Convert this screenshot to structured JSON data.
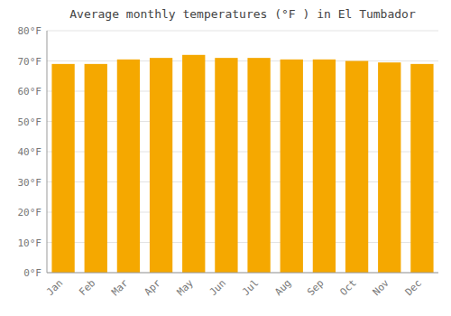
{
  "chart_data": {
    "type": "bar",
    "title": "Average monthly temperatures (°F ) in El Tumbador",
    "categories": [
      "Jan",
      "Feb",
      "Mar",
      "Apr",
      "May",
      "Jun",
      "Jul",
      "Aug",
      "Sep",
      "Oct",
      "Nov",
      "Dec"
    ],
    "values": [
      69,
      69,
      70.5,
      71,
      72,
      71,
      71,
      70.5,
      70.5,
      70,
      69.5,
      69
    ],
    "color": "#F5A800",
    "ylim": [
      0,
      80
    ],
    "yticks": [
      {
        "value": 0,
        "label": "0°F"
      },
      {
        "value": 10,
        "label": "10°F"
      },
      {
        "value": 20,
        "label": "20°F"
      },
      {
        "value": 30,
        "label": "30°F"
      },
      {
        "value": 40,
        "label": "40°F"
      },
      {
        "value": 50,
        "label": "50°F"
      },
      {
        "value": 60,
        "label": "60°F"
      },
      {
        "value": 70,
        "label": "70°F"
      },
      {
        "value": 80,
        "label": "80°F"
      }
    ],
    "grid": true
  }
}
